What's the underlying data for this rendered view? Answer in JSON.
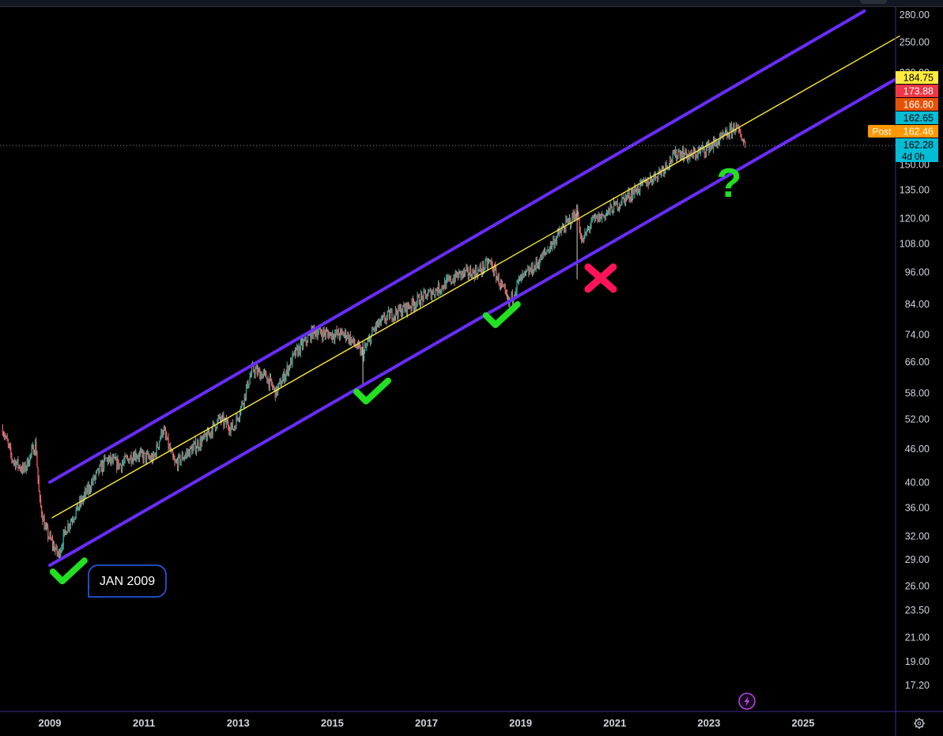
{
  "chart_data": {
    "type": "candlestick",
    "title": "",
    "x_axis": {
      "tick_labels": [
        "2009",
        "2011",
        "2013",
        "2015",
        "2017",
        "2019",
        "2021",
        "2023",
        "2025"
      ],
      "range": [
        2008.04,
        2027.05
      ]
    },
    "y_axis": {
      "scale": "log",
      "range": [
        16.4,
        284
      ],
      "tick_labels": [
        "280.00",
        "250.00",
        "220.00",
        "150.00",
        "135.00",
        "120.00",
        "108.00",
        "96.00",
        "84.00",
        "74.00",
        "66.00",
        "58.00",
        "52.00",
        "46.00",
        "40.00",
        "36.00",
        "32.00",
        "29.00",
        "26.00",
        "23.50",
        "21.00",
        "19.00",
        "17.20"
      ]
    },
    "price_tags": [
      {
        "value": "184.75",
        "color": "#ffeb3b",
        "text_color": "#000000"
      },
      {
        "value": "173.88",
        "color": "#f23645",
        "text_color": "#ffffff"
      },
      {
        "value": "166.80",
        "color": "#e65100",
        "text_color": "#ffffff"
      },
      {
        "value": "162.65",
        "color": "#00bcd4",
        "text_color": "#000000"
      },
      {
        "value": "162.46",
        "color": "#ff9800",
        "text_color": "#ffffff",
        "prefix": "Post"
      },
      {
        "value": "162.28",
        "color": "#00bcd4",
        "text_color": "#000000",
        "sub": "4d 0h"
      }
    ],
    "last_price": 162.28,
    "price_path": [
      [
        2008.0,
        50
      ],
      [
        2008.2,
        44
      ],
      [
        2008.45,
        42
      ],
      [
        2008.7,
        47
      ],
      [
        2008.78,
        37
      ],
      [
        2008.9,
        33
      ],
      [
        2009.05,
        31
      ],
      [
        2009.18,
        29.5
      ],
      [
        2009.35,
        33
      ],
      [
        2009.6,
        36
      ],
      [
        2009.9,
        40
      ],
      [
        2010.2,
        44
      ],
      [
        2010.5,
        43
      ],
      [
        2010.8,
        45
      ],
      [
        2011.2,
        44
      ],
      [
        2011.4,
        50
      ],
      [
        2011.65,
        43
      ],
      [
        2011.9,
        45
      ],
      [
        2012.3,
        48
      ],
      [
        2012.6,
        52
      ],
      [
        2012.9,
        50
      ],
      [
        2013.1,
        56
      ],
      [
        2013.3,
        64
      ],
      [
        2013.6,
        62
      ],
      [
        2013.8,
        58
      ],
      [
        2014.2,
        68
      ],
      [
        2014.6,
        75
      ],
      [
        2014.95,
        74
      ],
      [
        2015.3,
        74
      ],
      [
        2015.65,
        68
      ],
      [
        2015.9,
        76
      ],
      [
        2016.2,
        80
      ],
      [
        2016.5,
        82
      ],
      [
        2016.9,
        86
      ],
      [
        2017.3,
        90
      ],
      [
        2017.7,
        95
      ],
      [
        2018.1,
        96
      ],
      [
        2018.35,
        100
      ],
      [
        2018.55,
        92
      ],
      [
        2018.75,
        84
      ],
      [
        2018.95,
        92
      ],
      [
        2019.3,
        98
      ],
      [
        2019.6,
        106
      ],
      [
        2019.9,
        115
      ],
      [
        2020.1,
        120
      ],
      [
        2020.2,
        124
      ],
      [
        2020.3,
        108
      ],
      [
        2020.5,
        118
      ],
      [
        2020.8,
        122
      ],
      [
        2021.0,
        126
      ],
      [
        2021.3,
        132
      ],
      [
        2021.6,
        138
      ],
      [
        2021.9,
        144
      ],
      [
        2022.1,
        150
      ],
      [
        2022.35,
        158
      ],
      [
        2022.6,
        155
      ],
      [
        2022.9,
        160
      ],
      [
        2023.15,
        164
      ],
      [
        2023.4,
        170
      ],
      [
        2023.55,
        176
      ],
      [
        2023.7,
        168
      ],
      [
        2023.78,
        162.28
      ]
    ],
    "wicks": [
      {
        "x": 2015.65,
        "low": 60,
        "high": 72
      },
      {
        "x": 2020.2,
        "low": 93,
        "high": 124
      }
    ],
    "trendlines": [
      {
        "name": "channel-upper",
        "color": "#6a2cff",
        "x1": 2009.0,
        "y1": 40,
        "x2": 2026.3,
        "y2": 284
      },
      {
        "name": "channel-lower",
        "color": "#6a2cff",
        "x1": 2009.0,
        "y1": 28.3,
        "x2": 2027.05,
        "y2": 216
      },
      {
        "name": "midline",
        "color": "#ffeb3b",
        "x1": 2009.05,
        "y1": 34.5,
        "x2": 2027.05,
        "y2": 256
      }
    ],
    "annotations": {
      "label": "JAN 2009",
      "checks": [
        {
          "x": 2009.4,
          "y": 27.2,
          "color": "#22e022"
        },
        {
          "x": 2015.85,
          "y": 57.5,
          "color": "#22e022"
        },
        {
          "x": 2018.6,
          "y": 79,
          "color": "#22e022"
        }
      ],
      "cross": {
        "x": 2020.7,
        "y": 93.5,
        "color": "#ff1458"
      },
      "question": {
        "x": 2024.0,
        "y": 140,
        "text": "?",
        "color": "#22e022"
      }
    },
    "grid": false
  },
  "colors": {
    "background": "#000000",
    "axis_text": "#d1d4dc",
    "up": "#26a69a",
    "down": "#ef5350",
    "axis_border": "#3b2b8f"
  },
  "icons": {
    "settings": "gear-icon",
    "flash": "lightning-icon"
  }
}
